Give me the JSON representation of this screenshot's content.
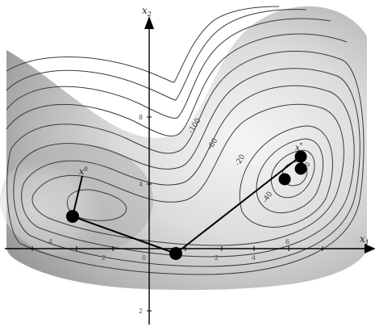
{
  "axes": {
    "x_label": "x",
    "x_label_sub": "1",
    "y_label": "x",
    "y_label_sub": "2"
  },
  "x_ticks": [
    "4",
    "2",
    "0",
    "2",
    "4",
    "6"
  ],
  "y_ticks": [
    "8",
    "4",
    "2"
  ],
  "contour_labels": [
    "-100",
    "-60",
    "-20",
    "-20",
    "-40"
  ],
  "points": {
    "start_label": "x",
    "start_label_sup": "0",
    "end_label": "x",
    "end_label_sup": "*"
  },
  "colors": {
    "surface_light": "#f4f4f4",
    "surface_dark": "#9a9a9a",
    "contour": "#3a3a3a",
    "path": "#000000",
    "marker": "#000000"
  }
}
